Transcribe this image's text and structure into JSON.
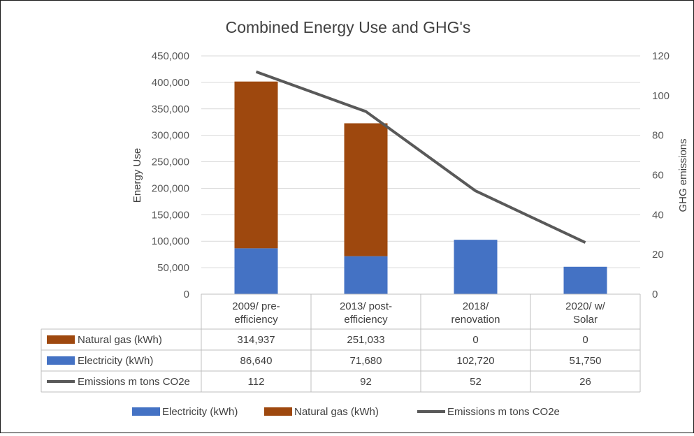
{
  "chart_data": {
    "type": "bar",
    "stacked": true,
    "title": "Combined Energy Use and GHG's",
    "ylabel": "Energy Use",
    "y2label": "GHG emissions",
    "ylim": [
      0,
      450000
    ],
    "y2lim": [
      0,
      120
    ],
    "yticks": [
      "0",
      "50,000",
      "100,000",
      "150,000",
      "200,000",
      "250,000",
      "300,000",
      "350,000",
      "400,000",
      "450,000"
    ],
    "y2ticks": [
      "0",
      "20",
      "40",
      "60",
      "80",
      "100",
      "120"
    ],
    "categories": [
      [
        "2009/ pre-",
        "efficiency"
      ],
      [
        "2013/ post-",
        "efficiency"
      ],
      [
        "2018/",
        "renovation"
      ],
      [
        "2020/ w/",
        "Solar"
      ]
    ],
    "series": [
      {
        "name": "Electricity (kWh)",
        "kind": "bar",
        "color": "#4472C4",
        "values": [
          86640,
          71680,
          102720,
          51750
        ],
        "labels": [
          "86,640",
          "71,680",
          "102,720",
          "51,750"
        ]
      },
      {
        "name": "Natural gas (kWh)",
        "kind": "bar",
        "color": "#9E480E",
        "values": [
          314937,
          251033,
          0,
          0
        ],
        "labels": [
          "314,937",
          "251,033",
          "0",
          "0"
        ]
      },
      {
        "name": "Emissions m tons CO2e",
        "kind": "line",
        "axis": "secondary",
        "color": "#595959",
        "values": [
          112,
          92,
          52,
          26
        ],
        "labels": [
          "112",
          "92",
          "52",
          "26"
        ]
      }
    ],
    "table_row_order": [
      1,
      0,
      2
    ],
    "legend": "bottom",
    "grid": true
  }
}
